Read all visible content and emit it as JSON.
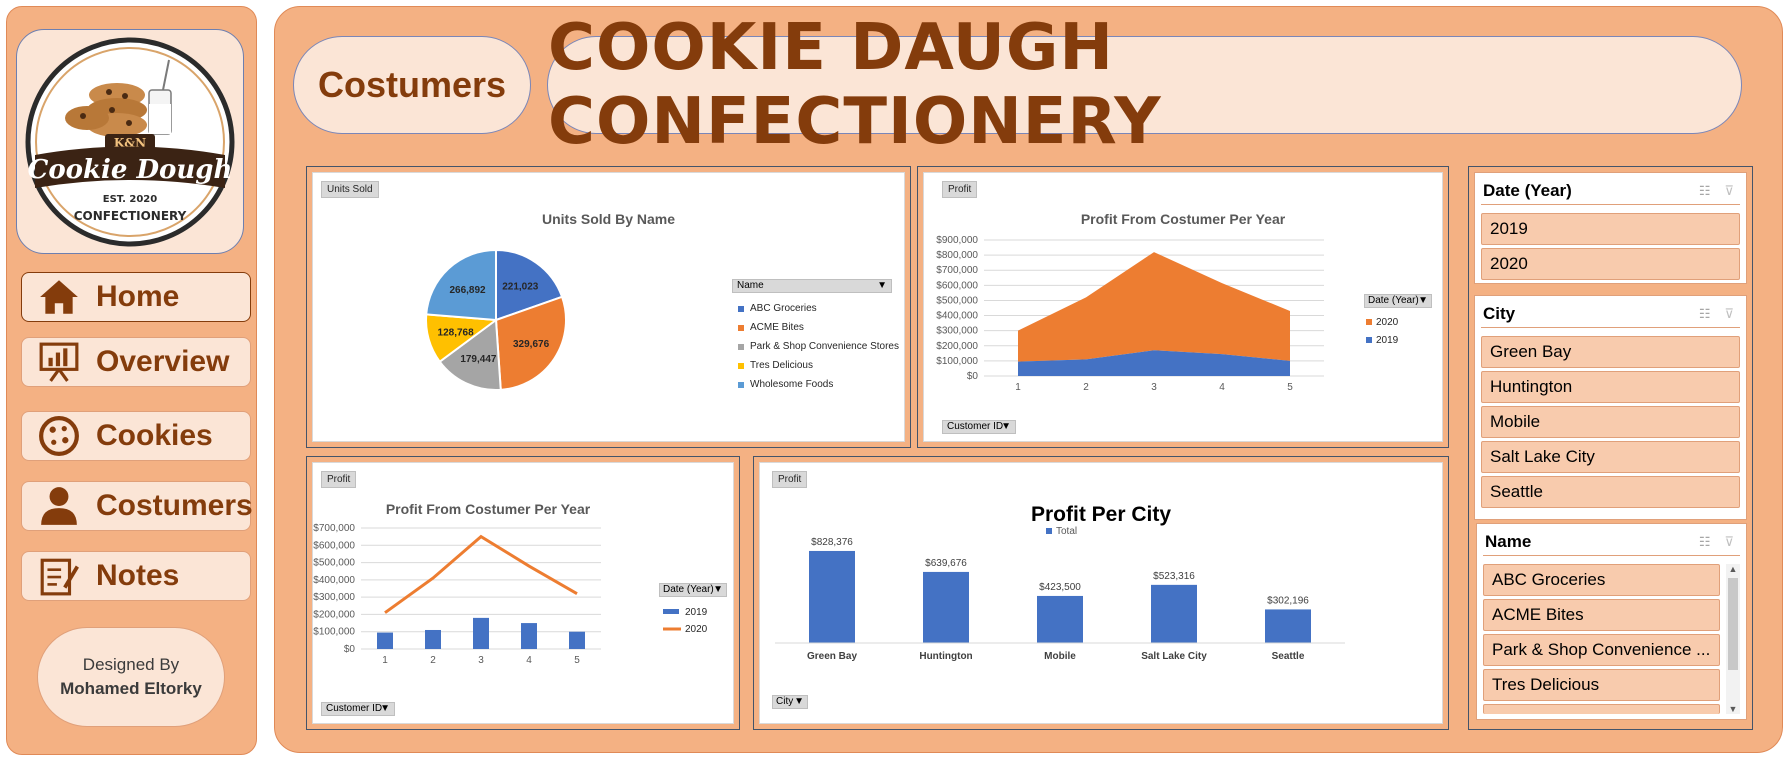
{
  "sidebar": {
    "logo": {
      "top": "K&N",
      "main": "Cookie Dough",
      "est": "EST. 2020",
      "bottom": "CONFECTIONERY"
    },
    "nav": [
      {
        "label": "Home",
        "icon": "home-icon"
      },
      {
        "label": "Overview",
        "icon": "presentation-chart-icon"
      },
      {
        "label": "Cookies",
        "icon": "cookie-icon"
      },
      {
        "label": "Costumers",
        "icon": "person-icon"
      },
      {
        "label": "Notes",
        "icon": "notes-icon"
      }
    ],
    "designed_by_label": "Designed By",
    "designed_by_name": "Mohamed Eltorky"
  },
  "header": {
    "section": "Costumers",
    "title": "COOKIE DAUGH CONFECTIONERY"
  },
  "colors": {
    "blue": "#4472c4",
    "orange": "#ed7d31",
    "gray": "#a5a5a5",
    "yellow": "#ffc000",
    "lightblue": "#5b9bd5",
    "brown": "#843c0c",
    "peach": "#f4b183"
  },
  "pie_card": {
    "field": "Units Sold",
    "legend_field": "Name",
    "chart_data": {
      "type": "pie",
      "title": "Units Sold By Name",
      "slices": [
        {
          "label": "ABC Groceries",
          "value": 221023,
          "display": "221,023",
          "color": "#4472c4"
        },
        {
          "label": "ACME Bites",
          "value": 329676,
          "display": "329,676",
          "color": "#ed7d31"
        },
        {
          "label": "Park & Shop Convenience Stores",
          "value": 179447,
          "display": "179,447",
          "color": "#a5a5a5"
        },
        {
          "label": "Tres Delicious",
          "value": 128768,
          "display": "128,768",
          "color": "#ffc000"
        },
        {
          "label": "Wholesome Foods",
          "value": 266892,
          "display": "266,892",
          "color": "#5b9bd5"
        }
      ],
      "legend": "right"
    }
  },
  "area_card": {
    "field": "Profit",
    "axis_field": "Customer ID",
    "legend_field": "Date (Year)",
    "chart_data": {
      "type": "area",
      "title": "Profit From Costumer Per Year",
      "x": [
        1,
        2,
        3,
        4,
        5
      ],
      "ylim": [
        0,
        900000
      ],
      "yticks": [
        "$0",
        "$100,000",
        "$200,000",
        "$300,000",
        "$400,000",
        "$500,000",
        "$600,000",
        "$700,000",
        "$800,000",
        "$900,000"
      ],
      "series": [
        {
          "name": "2019",
          "values": [
            95000,
            110000,
            170000,
            145000,
            100000
          ],
          "color": "#4472c4"
        },
        {
          "name": "2020",
          "values": [
            205000,
            410000,
            650000,
            470000,
            330000
          ],
          "color": "#ed7d31"
        }
      ],
      "legend_order": [
        "2020",
        "2019"
      ],
      "stacked": true,
      "grid": true
    }
  },
  "combo_card": {
    "field": "Profit",
    "axis_field": "Customer ID",
    "legend_field": "Date (Year)",
    "chart_data": {
      "type": "bar",
      "title": "Profit From Costumer Per Year",
      "x": [
        1,
        2,
        3,
        4,
        5
      ],
      "ylim": [
        0,
        700000
      ],
      "yticks": [
        "$0",
        "$100,000",
        "$200,000",
        "$300,000",
        "$400,000",
        "$500,000",
        "$600,000",
        "$700,000"
      ],
      "series": [
        {
          "name": "2019",
          "kind": "bar",
          "values": [
            95000,
            110000,
            180000,
            150000,
            100000
          ],
          "color": "#4472c4"
        },
        {
          "name": "2020",
          "kind": "line",
          "values": [
            210000,
            410000,
            650000,
            480000,
            320000
          ],
          "color": "#ed7d31"
        }
      ],
      "grid": true
    }
  },
  "city_card": {
    "field": "Profit",
    "axis_field": "City",
    "chart_data": {
      "type": "bar",
      "title": "Profit Per City",
      "categories": [
        "Green Bay",
        "Huntington",
        "Mobile",
        "Salt Lake City",
        "Seattle"
      ],
      "values": [
        828376,
        639676,
        423500,
        523316,
        302196
      ],
      "labels": [
        "$828,376",
        "$639,676",
        "$423,500",
        "$523,316",
        "$302,196"
      ],
      "series_name": "Total",
      "color": "#4472c4",
      "ylim": [
        0,
        900000
      ],
      "legend": "top"
    }
  },
  "slicers": [
    {
      "title": "Date (Year)",
      "items": [
        "2019",
        "2020"
      ]
    },
    {
      "title": "City",
      "items": [
        "Green Bay",
        "Huntington",
        "Mobile",
        "Salt Lake City",
        "Seattle"
      ]
    },
    {
      "title": "Name",
      "items": [
        "ABC Groceries",
        "ACME Bites",
        "Park & Shop Convenience ...",
        "Tres Delicious"
      ]
    }
  ]
}
